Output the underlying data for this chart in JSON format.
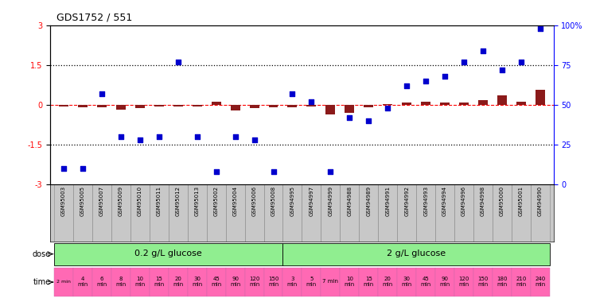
{
  "title": "GDS1752 / 551",
  "samples": [
    "GSM95003",
    "GSM95005",
    "GSM95007",
    "GSM95009",
    "GSM95010",
    "GSM95011",
    "GSM95012",
    "GSM95013",
    "GSM95002",
    "GSM95004",
    "GSM95006",
    "GSM95008",
    "GSM94995",
    "GSM94997",
    "GSM94999",
    "GSM94988",
    "GSM94989",
    "GSM94991",
    "GSM94992",
    "GSM94993",
    "GSM94994",
    "GSM94996",
    "GSM94998",
    "GSM95000",
    "GSM95001",
    "GSM94990"
  ],
  "log2_ratio": [
    -0.07,
    -0.1,
    -0.1,
    -0.2,
    -0.12,
    -0.08,
    -0.08,
    -0.08,
    0.1,
    -0.22,
    -0.14,
    -0.1,
    -0.1,
    -0.08,
    -0.38,
    -0.3,
    -0.1,
    0.02,
    0.08,
    0.12,
    0.08,
    0.08,
    0.18,
    0.35,
    0.1,
    0.55
  ],
  "percentile": [
    10,
    10,
    57,
    30,
    28,
    30,
    77,
    30,
    8,
    30,
    28,
    8,
    57,
    52,
    8,
    42,
    40,
    48,
    62,
    65,
    68,
    77,
    84,
    72,
    77,
    98
  ],
  "dose_groups": [
    {
      "label": "0.2 g/L glucose",
      "start": 0,
      "end": 12,
      "color": "#90EE90"
    },
    {
      "label": "2 g/L glucose",
      "start": 12,
      "end": 26,
      "color": "#66CC66"
    }
  ],
  "time_labels": [
    "2 min",
    "4\nmin",
    "6\nmin",
    "8\nmin",
    "10\nmin",
    "15\nmin",
    "20\nmin",
    "30\nmin",
    "45\nmin",
    "90\nmin",
    "120\nmin",
    "150\nmin",
    "3\nmin",
    "5\nmin",
    "7 min",
    "10\nmin",
    "15\nmin",
    "20\nmin",
    "30\nmin",
    "45\nmin",
    "90\nmin",
    "120\nmin",
    "150\nmin",
    "180\nmin",
    "210\nmin",
    "240\nmin"
  ],
  "ylim_left": [
    -3,
    3
  ],
  "ylim_right": [
    0,
    100
  ],
  "bar_color": "#8B1A1A",
  "scatter_color": "#0000CD",
  "label_bg": "#C8C8C8",
  "dose_color": "#90EE90",
  "time_color": "#FF69B4",
  "legend_bar_color": "#8B1A1A",
  "legend_scatter_color": "#0000CD"
}
